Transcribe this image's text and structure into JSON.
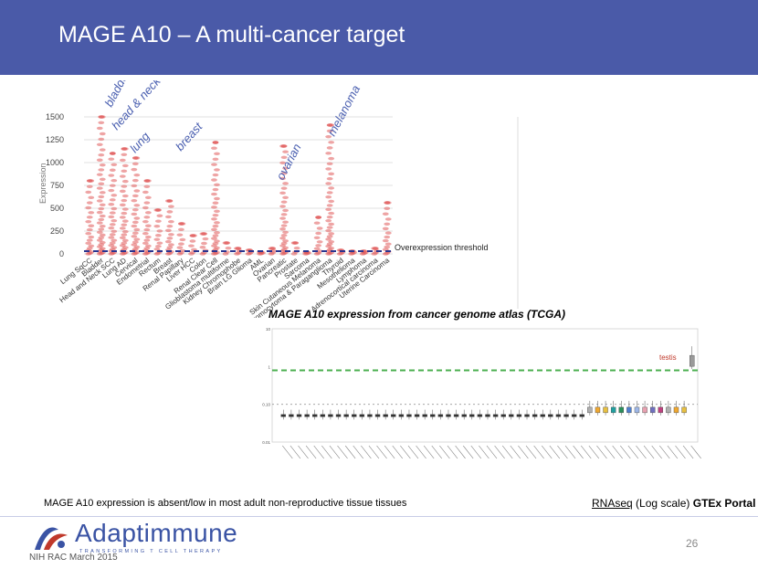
{
  "header": {
    "title": "MAGE A10 – A multi-cancer target"
  },
  "chart_data": [
    {
      "type": "scatter",
      "title": "MAGE A10 expression from cancer genome atlas (TCGA)",
      "ylabel": "Expression",
      "xlabel": "",
      "ylim": [
        0,
        1500
      ],
      "yticks": [
        "0",
        "250",
        "500",
        "750",
        "1000",
        "1250",
        "1500"
      ],
      "threshold": {
        "label": "Overexpression threshold",
        "value": 30
      },
      "categories": [
        "Lung SqCC",
        "Bladder",
        "Head and Neck SCC",
        "Lung AD",
        "Cervical",
        "Endometrial",
        "Rectum",
        "Breast",
        "Renal Papillary",
        "Liver HCC",
        "Colon",
        "Renal Clear Cell",
        "Glioblastoma multiforme",
        "Kidney Chromophobe",
        "Brain LG Glioma",
        "AML",
        "Ovarian",
        "Pancreatic",
        "Prostate",
        "Sarcoma",
        "Skin Cutaneous Melanoma",
        "Pheochromocytoma & Paraganglioma",
        "Thyroid",
        "Mesothelioma",
        "Lymphoma",
        "Adrenocortical carcinoma",
        "Uterine Carcinoma"
      ],
      "max_values": [
        800,
        1500,
        1100,
        1150,
        1050,
        800,
        480,
        580,
        330,
        200,
        220,
        1220,
        120,
        60,
        40,
        20,
        60,
        1180,
        120,
        20,
        400,
        1410,
        40,
        30,
        30,
        60,
        560
      ],
      "annotations": [
        "bladder",
        "head & neck",
        "lung",
        "breast",
        "ovarian",
        "melanoma"
      ],
      "colors": {
        "points": "#e05a5a",
        "threshold": "#2a3590",
        "annotation": "#4a5fb0"
      }
    },
    {
      "type": "box",
      "caption_prefix": "RNAseq",
      "caption_middle": "(Log scale)",
      "caption_bold": "GTEx Portal",
      "yticks": [
        "10",
        "1",
        "0.10",
        "0.01"
      ],
      "highlight_label": "testis",
      "tissue_count": 53,
      "testis_median_log10": 0.15,
      "reference_line_log10": -0.1,
      "other_tissue_median_log10": -1.3,
      "colors": {
        "highlight": "#c0392b",
        "dashed_line": "#4caf50",
        "box": "#888888"
      }
    }
  ],
  "footer": {
    "caption": "MAGE A10 expression is absent/low in most adult non-reproductive tissue tissues",
    "logo_name": "Adaptimmune",
    "logo_tagline": "TRANSFORMING T CELL THERAPY",
    "note": "NIH RAC March 2015",
    "page_number": "26"
  }
}
